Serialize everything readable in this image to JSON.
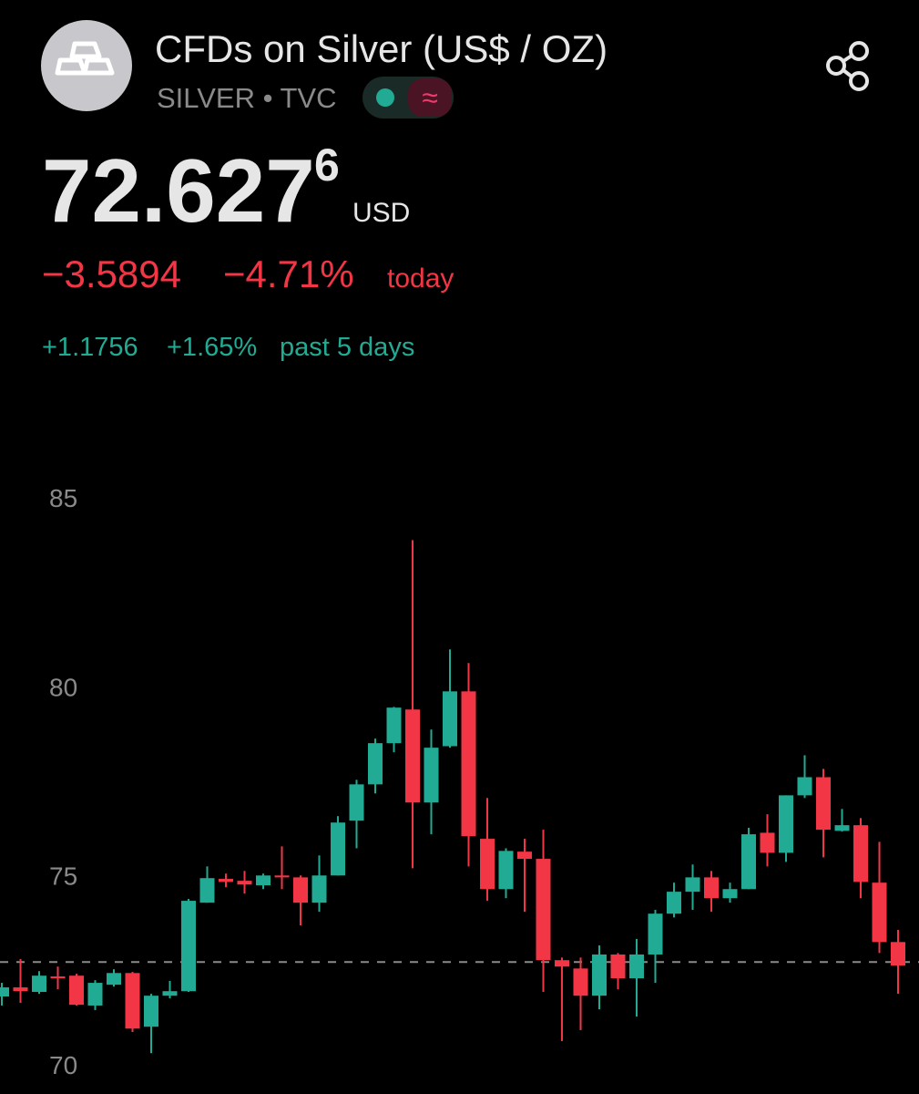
{
  "header": {
    "title": "CFDs on Silver (US$ / OZ)",
    "subtitle": "SILVER • TVC",
    "status_symbol": "≈",
    "price": "72.627",
    "price_last_digit": "6",
    "currency": "USD",
    "change_today": "−3.5894",
    "change_today_pct": "−4.71%",
    "today_label": "today",
    "change_5d": "+1.1756",
    "change_5d_pct": "+1.65%",
    "period_5d_label": "past 5 days"
  },
  "chart_data": {
    "type": "candlestick",
    "up_color": "#22ab94",
    "down_color": "#f23645",
    "grid": false,
    "ylim": [
      69.23,
      86.11
    ],
    "yticks": [
      70,
      75,
      80,
      85
    ],
    "price_line": 72.72,
    "open": [
      71.81,
      72.05,
      71.93,
      72.34,
      72.36,
      71.57,
      72.12,
      72.43,
      71.01,
      71.83,
      71.95,
      74.29,
      74.92,
      74.87,
      74.75,
      75.01,
      74.96,
      74.29,
      75.01,
      76.46,
      77.42,
      78.51,
      79.4,
      76.94,
      78.43,
      79.88,
      75.98,
      74.65,
      75.64,
      75.45,
      72.77,
      72.55,
      71.83,
      72.92,
      72.29,
      72.92,
      74.0,
      74.58,
      74.96,
      74.41,
      74.65,
      76.14,
      75.61,
      77.13,
      77.61,
      76.19,
      76.34,
      74.82,
      73.25
    ],
    "high": [
      72.17,
      72.8,
      72.48,
      72.6,
      72.41,
      72.24,
      72.53,
      72.46,
      71.88,
      72.22,
      74.39,
      75.25,
      75.06,
      75.13,
      75.06,
      75.78,
      75.01,
      75.54,
      76.58,
      77.54,
      78.63,
      79.47,
      83.88,
      78.87,
      80.99,
      80.63,
      77.06,
      75.73,
      75.98,
      76.22,
      72.84,
      72.84,
      73.16,
      72.96,
      73.33,
      74.1,
      74.82,
      75.3,
      75.13,
      74.82,
      76.27,
      76.63,
      77.13,
      78.19,
      77.83,
      76.77,
      76.53,
      75.9,
      73.57
    ],
    "low": [
      71.57,
      71.64,
      71.88,
      72.0,
      71.57,
      71.45,
      72.07,
      70.87,
      70.31,
      71.76,
      71.93,
      74.29,
      74.7,
      74.53,
      74.65,
      74.65,
      73.69,
      74.05,
      75.01,
      75.73,
      77.18,
      78.27,
      75.2,
      76.1,
      78.39,
      75.25,
      74.34,
      74.41,
      74.05,
      71.93,
      70.63,
      70.92,
      71.47,
      72.0,
      71.28,
      72.17,
      73.9,
      74.1,
      74.05,
      74.29,
      74.65,
      75.25,
      75.37,
      77.06,
      75.49,
      76.17,
      74.41,
      72.96,
      71.88
    ],
    "close": [
      72.05,
      71.95,
      72.36,
      72.29,
      71.59,
      72.17,
      72.43,
      70.96,
      71.83,
      71.95,
      74.34,
      74.94,
      74.84,
      74.77,
      75.01,
      74.96,
      74.29,
      75.01,
      76.41,
      77.42,
      78.51,
      79.45,
      76.94,
      78.39,
      79.88,
      76.05,
      74.65,
      75.66,
      75.45,
      72.77,
      72.6,
      71.83,
      72.92,
      72.29,
      72.92,
      74.0,
      74.58,
      74.96,
      74.41,
      74.65,
      76.1,
      75.61,
      77.13,
      77.61,
      76.22,
      76.34,
      74.84,
      73.25,
      72.63
    ]
  }
}
